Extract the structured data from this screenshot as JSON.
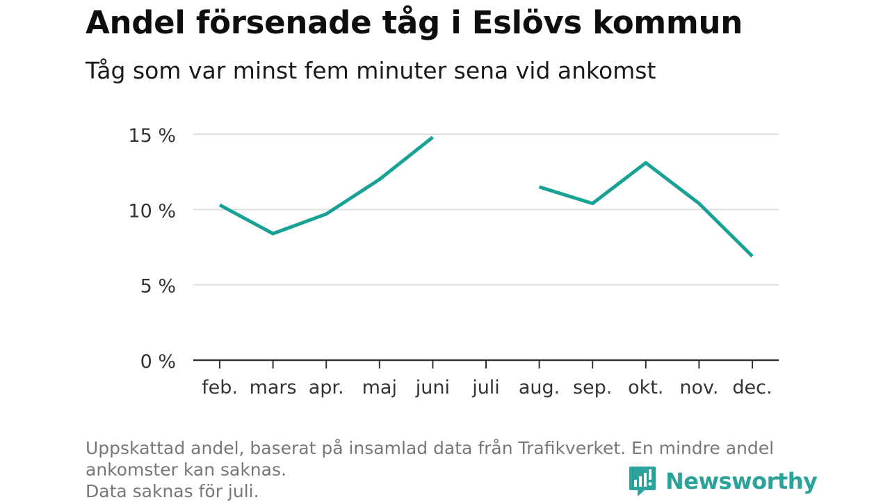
{
  "title": "Andel försenade tåg i Eslövs kommun",
  "subtitle": "Tåg som var minst fem minuter sena vid ankomst",
  "footnote": {
    "line1": "Uppskattad andel, baserat på insamlad data från Trafikverket. En mindre andel",
    "line2": "ankomster kan saknas.",
    "line3": "Data saknas för juli."
  },
  "brand": {
    "name": "Newsworthy",
    "color": "#2ba39a"
  },
  "colors": {
    "line": "#1aa196",
    "grid": "#dddddd",
    "axis": "#333333",
    "tick_text": "#333333"
  },
  "chart_data": {
    "type": "line",
    "categories": [
      "feb.",
      "mars",
      "apr.",
      "maj",
      "juni",
      "juli",
      "aug.",
      "sep.",
      "okt.",
      "nov.",
      "dec."
    ],
    "values": [
      10.3,
      8.4,
      9.7,
      12.0,
      14.8,
      null,
      11.5,
      10.4,
      13.1,
      10.4,
      6.9
    ],
    "ylim": [
      0,
      15
    ],
    "yticks": [
      0,
      5,
      10,
      15
    ],
    "ytick_labels": [
      "0 %",
      "5 %",
      "10 %",
      "15 %"
    ],
    "grid": true,
    "xlabel": "",
    "ylabel": ""
  }
}
